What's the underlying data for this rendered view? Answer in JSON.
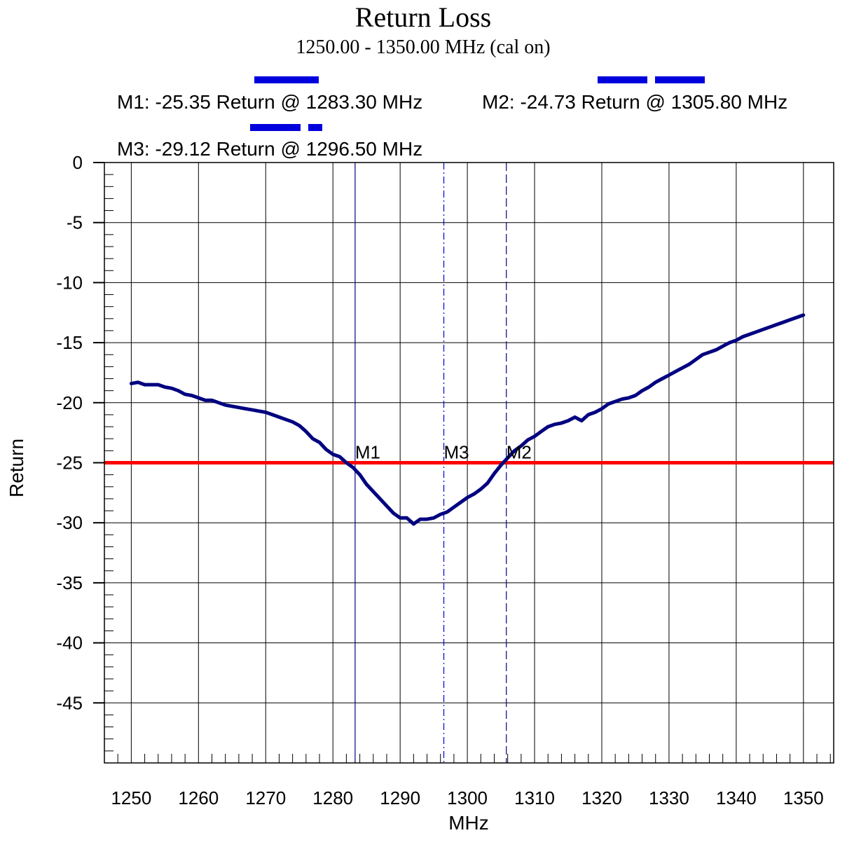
{
  "chart_data": {
    "type": "line",
    "title": "Return Loss",
    "subtitle": "1250.00 - 1350.00 MHz (cal on)",
    "xlabel": "MHz",
    "ylabel": "Return",
    "xlim": [
      1246,
      1354.5
    ],
    "ylim": [
      -50,
      0
    ],
    "xticks": [
      1250,
      1260,
      1270,
      1280,
      1290,
      1300,
      1310,
      1320,
      1330,
      1340,
      1350
    ],
    "yticks": [
      0,
      -5,
      -10,
      -15,
      -20,
      -25,
      -30,
      -35,
      -40,
      -45
    ],
    "grid": true,
    "series": [
      {
        "color": "#000080",
        "x": [
          1250,
          1251,
          1252,
          1253,
          1254,
          1255,
          1256,
          1257,
          1258,
          1259,
          1260,
          1261,
          1262,
          1263,
          1264,
          1265,
          1266,
          1267,
          1268,
          1269,
          1270,
          1271,
          1272,
          1273,
          1274,
          1275,
          1276,
          1277,
          1278,
          1279,
          1280,
          1281,
          1282,
          1283,
          1284,
          1285,
          1286,
          1287,
          1288,
          1289,
          1290,
          1291,
          1292,
          1293,
          1294,
          1295,
          1296,
          1297,
          1298,
          1299,
          1300,
          1301,
          1302,
          1303,
          1304,
          1305,
          1306,
          1307,
          1308,
          1309,
          1310,
          1311,
          1312,
          1313,
          1314,
          1315,
          1316,
          1317,
          1318,
          1319,
          1320,
          1321,
          1322,
          1323,
          1324,
          1325,
          1326,
          1327,
          1328,
          1329,
          1330,
          1331,
          1332,
          1333,
          1334,
          1335,
          1336,
          1337,
          1338,
          1339,
          1340,
          1341,
          1342,
          1343,
          1344,
          1345,
          1346,
          1347,
          1348,
          1349,
          1350
        ],
        "values": [
          -18.4,
          -18.3,
          -18.5,
          -18.5,
          -18.5,
          -18.7,
          -18.8,
          -19.0,
          -19.3,
          -19.4,
          -19.6,
          -19.8,
          -19.8,
          -20.0,
          -20.2,
          -20.3,
          -20.4,
          -20.5,
          -20.6,
          -20.7,
          -20.8,
          -21.0,
          -21.2,
          -21.4,
          -21.6,
          -21.9,
          -22.4,
          -23.0,
          -23.3,
          -23.9,
          -24.3,
          -24.5,
          -25.0,
          -25.4,
          -26.0,
          -26.8,
          -27.4,
          -28.0,
          -28.6,
          -29.2,
          -29.6,
          -29.6,
          -30.1,
          -29.7,
          -29.7,
          -29.6,
          -29.3,
          -29.1,
          -28.7,
          -28.3,
          -27.9,
          -27.6,
          -27.2,
          -26.7,
          -25.9,
          -25.2,
          -24.6,
          -24.0,
          -23.6,
          -23.1,
          -22.8,
          -22.4,
          -22.0,
          -21.8,
          -21.7,
          -21.5,
          -21.2,
          -21.5,
          -21.0,
          -20.8,
          -20.5,
          -20.1,
          -19.9,
          -19.7,
          -19.6,
          -19.4,
          -19.0,
          -18.7,
          -18.3,
          -18.0,
          -17.7,
          -17.4,
          -17.1,
          -16.8,
          -16.4,
          -16.0,
          -15.8,
          -15.6,
          -15.3,
          -15.0,
          -14.8,
          -14.5,
          -14.3,
          -14.1,
          -13.9,
          -13.7,
          -13.5,
          -13.3,
          -13.1,
          -12.9,
          -12.7
        ]
      }
    ],
    "limit_line": {
      "y": -25,
      "color": "#ff0000"
    },
    "markers": [
      {
        "id": "M1",
        "x": 1283.3,
        "style": "solid",
        "color": "#000080"
      },
      {
        "id": "M3",
        "x": 1296.5,
        "style": "dashdot",
        "color": "#0000cc"
      },
      {
        "id": "M2",
        "x": 1305.8,
        "style": "dashed",
        "color": "#000080"
      }
    ],
    "marker_readouts": [
      {
        "text": "M1: -25.35 Return @ 1283.30 MHz"
      },
      {
        "text": "M2: -24.73 Return @ 1305.80 MHz"
      },
      {
        "text": "M3: -29.12 Return @ 1296.50 MHz"
      }
    ],
    "marker_swatch_color": "#0000dd"
  }
}
